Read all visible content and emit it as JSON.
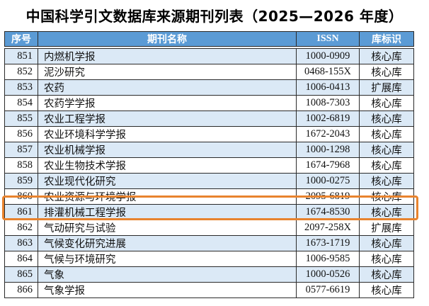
{
  "title": "中国科学引文数据库来源期刊列表（2025—2026 年度）",
  "table": {
    "columns": [
      "序号",
      "期刊名称",
      "ISSN",
      "库标识"
    ],
    "rows": [
      {
        "no": "851",
        "name": "内燃机学报",
        "issn": "1000-0909",
        "db": "核心库"
      },
      {
        "no": "852",
        "name": "泥沙研究",
        "issn": "0468-155X",
        "db": "核心库"
      },
      {
        "no": "853",
        "name": "农药",
        "issn": "1006-0413",
        "db": "扩展库"
      },
      {
        "no": "854",
        "name": "农药学学报",
        "issn": "1008-7303",
        "db": "核心库"
      },
      {
        "no": "855",
        "name": "农业工程学报",
        "issn": "1002-6819",
        "db": "核心库"
      },
      {
        "no": "856",
        "name": "农业环境科学学报",
        "issn": "1672-2043",
        "db": "核心库"
      },
      {
        "no": "857",
        "name": "农业机械学报",
        "issn": "1000-1298",
        "db": "核心库"
      },
      {
        "no": "858",
        "name": "农业生物技术学报",
        "issn": "1674-7968",
        "db": "核心库"
      },
      {
        "no": "859",
        "name": "农业现代化研究",
        "issn": "1000-0275",
        "db": "核心库"
      },
      {
        "no": "860",
        "name": "农业资源与环境学报",
        "issn": "2095-6819",
        "db": "核心库"
      },
      {
        "no": "861",
        "name": "排灌机械工程学报",
        "issn": "1674-8530",
        "db": "核心库"
      },
      {
        "no": "862",
        "name": "气动研究与试验",
        "issn": "2097-258X",
        "db": "扩展库"
      },
      {
        "no": "863",
        "name": "气候变化研究进展",
        "issn": "1673-1719",
        "db": "核心库"
      },
      {
        "no": "864",
        "name": "气候与环境研究",
        "issn": "1006-9585",
        "db": "核心库"
      },
      {
        "no": "865",
        "name": "气象",
        "issn": "1000-0526",
        "db": "核心库"
      },
      {
        "no": "866",
        "name": "气象学报",
        "issn": "0577-6619",
        "db": "核心库"
      }
    ]
  },
  "highlight": {
    "row_no": "861",
    "shape": "orange-rectangle-outline"
  },
  "colors": {
    "header_bg": "#5b9bd5",
    "header_text": "#ffffff",
    "row_alt_bg": "#dbe9f6",
    "highlight_border": "#e8832e"
  }
}
